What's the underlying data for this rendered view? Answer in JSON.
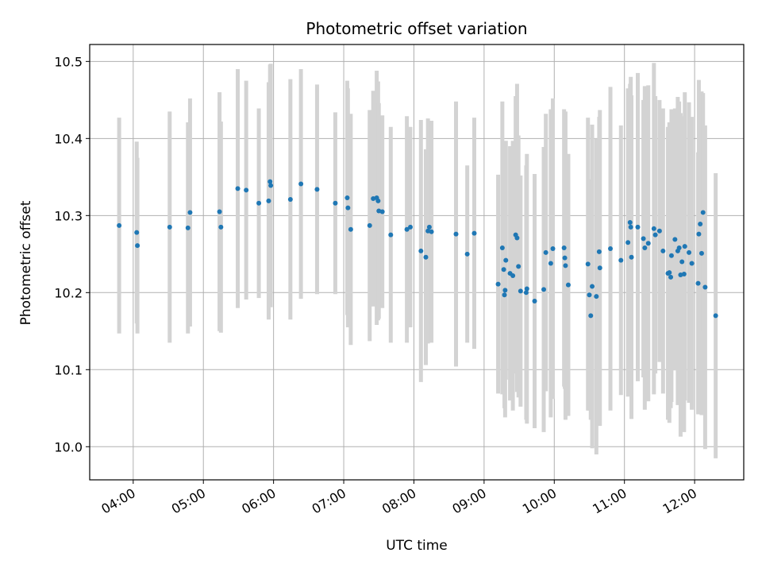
{
  "chart_data": {
    "type": "scatter",
    "title": "Photometric offset variation",
    "xlabel": "UTC time",
    "ylabel": "Photometric offset",
    "x_unit": "hours UTC",
    "xlim": [
      3.38,
      12.7
    ],
    "ylim": [
      9.957,
      10.522
    ],
    "x_ticks": [
      {
        "value": 4,
        "label": "04:00"
      },
      {
        "value": 5,
        "label": "05:00"
      },
      {
        "value": 6,
        "label": "06:00"
      },
      {
        "value": 7,
        "label": "07:00"
      },
      {
        "value": 8,
        "label": "08:00"
      },
      {
        "value": 9,
        "label": "09:00"
      },
      {
        "value": 10,
        "label": "10:00"
      },
      {
        "value": 11,
        "label": "11:00"
      },
      {
        "value": 12,
        "label": "12:00"
      }
    ],
    "y_ticks": [
      {
        "value": 10.0,
        "label": "10.0"
      },
      {
        "value": 10.1,
        "label": "10.1"
      },
      {
        "value": 10.2,
        "label": "10.2"
      },
      {
        "value": 10.3,
        "label": "10.3"
      },
      {
        "value": 10.4,
        "label": "10.4"
      },
      {
        "value": 10.5,
        "label": "10.5"
      }
    ],
    "grid": true,
    "colors": {
      "point": "#1f77b4",
      "errorbar": "#d3d3d3",
      "grid": "#b0b0b0"
    },
    "points": [
      [
        3.8,
        10.287,
        0.14
      ],
      [
        4.05,
        10.278,
        0.118
      ],
      [
        4.06,
        10.261,
        0.114
      ],
      [
        4.52,
        10.285,
        0.15
      ],
      [
        4.78,
        10.284,
        0.137
      ],
      [
        4.81,
        10.304,
        0.148
      ],
      [
        5.23,
        10.305,
        0.155
      ],
      [
        5.25,
        10.285,
        0.137
      ],
      [
        5.49,
        10.335,
        0.155
      ],
      [
        5.61,
        10.333,
        0.142
      ],
      [
        5.79,
        10.316,
        0.123
      ],
      [
        5.93,
        10.319,
        0.154
      ],
      [
        5.95,
        10.344,
        0.152
      ],
      [
        5.96,
        10.339,
        0.158
      ],
      [
        6.24,
        10.321,
        0.156
      ],
      [
        6.39,
        10.341,
        0.149
      ],
      [
        6.62,
        10.334,
        0.136
      ],
      [
        6.88,
        10.316,
        0.118
      ],
      [
        7.05,
        10.323,
        0.152
      ],
      [
        7.06,
        10.31,
        0.155
      ],
      [
        7.1,
        10.282,
        0.15
      ],
      [
        7.37,
        10.287,
        0.15
      ],
      [
        7.42,
        10.322,
        0.14
      ],
      [
        7.47,
        10.323,
        0.165
      ],
      [
        7.49,
        10.319,
        0.155
      ],
      [
        7.5,
        10.306,
        0.14
      ],
      [
        7.55,
        10.305,
        0.125
      ],
      [
        7.67,
        10.275,
        0.14
      ],
      [
        7.9,
        10.282,
        0.147
      ],
      [
        7.95,
        10.285,
        0.13
      ],
      [
        8.1,
        10.254,
        0.17
      ],
      [
        8.17,
        10.246,
        0.14
      ],
      [
        8.2,
        10.28,
        0.146
      ],
      [
        8.22,
        10.285,
        0.133
      ],
      [
        8.25,
        10.279,
        0.144
      ],
      [
        8.6,
        10.276,
        0.172
      ],
      [
        8.76,
        10.25,
        0.115
      ],
      [
        8.86,
        10.277,
        0.15
      ],
      [
        9.2,
        10.211,
        0.142
      ],
      [
        9.26,
        10.258,
        0.19
      ],
      [
        9.28,
        10.23,
        0.137
      ],
      [
        9.29,
        10.197,
        0.147
      ],
      [
        9.3,
        10.203,
        0.165
      ],
      [
        9.31,
        10.242,
        0.155
      ],
      [
        9.37,
        10.225,
        0.165
      ],
      [
        9.41,
        10.222,
        0.175
      ],
      [
        9.45,
        10.275,
        0.18
      ],
      [
        9.47,
        10.271,
        0.2
      ],
      [
        9.49,
        10.234,
        0.17
      ],
      [
        9.52,
        10.202,
        0.15
      ],
      [
        9.6,
        10.2,
        0.165
      ],
      [
        9.61,
        10.205,
        0.175
      ],
      [
        9.72,
        10.189,
        0.165
      ],
      [
        9.85,
        10.204,
        0.185
      ],
      [
        9.88,
        10.252,
        0.18
      ],
      [
        9.95,
        10.238,
        0.2
      ],
      [
        9.98,
        10.257,
        0.195
      ],
      [
        10.14,
        10.258,
        0.18
      ],
      [
        10.15,
        10.245,
        0.17
      ],
      [
        10.16,
        10.235,
        0.2
      ],
      [
        10.2,
        10.21,
        0.17
      ],
      [
        10.48,
        10.237,
        0.19
      ],
      [
        10.5,
        10.197,
        0.15
      ],
      [
        10.52,
        10.17,
        0.135
      ],
      [
        10.54,
        10.208,
        0.21
      ],
      [
        10.6,
        10.195,
        0.205
      ],
      [
        10.64,
        10.253,
        0.175
      ],
      [
        10.65,
        10.232,
        0.205
      ],
      [
        10.8,
        10.257,
        0.21
      ],
      [
        10.95,
        10.242,
        0.175
      ],
      [
        11.05,
        10.265,
        0.2
      ],
      [
        11.08,
        10.291,
        0.18
      ],
      [
        11.09,
        10.285,
        0.195
      ],
      [
        11.1,
        10.246,
        0.21
      ],
      [
        11.19,
        10.285,
        0.2
      ],
      [
        11.27,
        10.27,
        0.18
      ],
      [
        11.29,
        10.258,
        0.21
      ],
      [
        11.34,
        10.264,
        0.205
      ],
      [
        11.42,
        10.283,
        0.215
      ],
      [
        11.44,
        10.275,
        0.18
      ],
      [
        11.5,
        10.28,
        0.17
      ],
      [
        11.55,
        10.254,
        0.185
      ],
      [
        11.62,
        10.225,
        0.19
      ],
      [
        11.64,
        10.226,
        0.195
      ],
      [
        11.66,
        10.22,
        0.17
      ],
      [
        11.67,
        10.248,
        0.19
      ],
      [
        11.72,
        10.269,
        0.17
      ],
      [
        11.76,
        10.254,
        0.2
      ],
      [
        11.78,
        10.258,
        0.19
      ],
      [
        11.8,
        10.223,
        0.21
      ],
      [
        11.82,
        10.24,
        0.185
      ],
      [
        11.85,
        10.224,
        0.205
      ],
      [
        11.86,
        10.26,
        0.2
      ],
      [
        11.92,
        10.252,
        0.195
      ],
      [
        11.96,
        10.238,
        0.19
      ],
      [
        12.05,
        10.212,
        0.17
      ],
      [
        12.06,
        10.276,
        0.2
      ],
      [
        12.08,
        10.289,
        0.16
      ],
      [
        12.1,
        10.251,
        0.21
      ],
      [
        12.12,
        10.304,
        0.155
      ],
      [
        12.15,
        10.207,
        0.21
      ],
      [
        12.3,
        10.17,
        0.185
      ]
    ]
  }
}
